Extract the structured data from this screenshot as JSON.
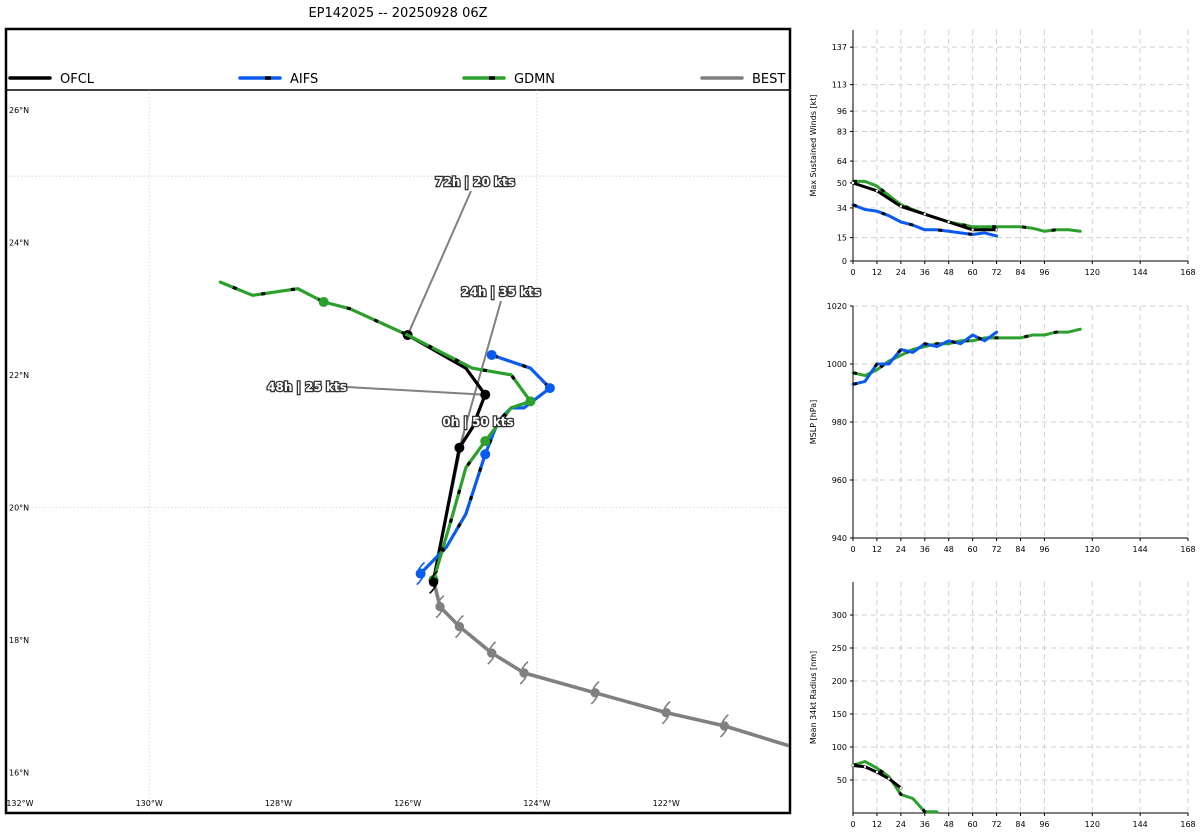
{
  "chart_data": [
    {
      "type": "line",
      "subtype": "track-map",
      "title": "EP142025 -- 20250928 06Z",
      "legend": [
        "OFCL",
        "AIFS",
        "GDMN",
        "BEST"
      ],
      "x_ticks": [
        "132°W",
        "130°W",
        "128°W",
        "126°W",
        "124°W",
        "122°W"
      ],
      "y_ticks": [
        "26°N",
        "24°N",
        "22°N",
        "20°N",
        "18°N",
        "16°N"
      ],
      "xlim": [
        -132.2,
        -120.1
      ],
      "ylim": [
        15.4,
        26.3
      ],
      "series": [
        {
          "name": "BEST",
          "color": "#808080",
          "lon": [
            -120.1,
            -121.1,
            -122.0,
            -123.1,
            -124.2,
            -124.7,
            -125.2,
            -125.5,
            -125.6
          ],
          "lat": [
            16.4,
            16.7,
            16.9,
            17.2,
            17.5,
            17.8,
            18.2,
            18.5,
            18.9
          ],
          "markers": [
            1,
            2,
            3,
            4,
            5,
            6,
            7
          ]
        },
        {
          "name": "OFCL",
          "color": "#000000",
          "lon": [
            -125.6,
            -125.4,
            -125.2,
            -125.0,
            -124.8,
            -125.1,
            -126.0
          ],
          "lat": [
            18.9,
            19.9,
            20.9,
            21.2,
            21.7,
            22.1,
            22.6
          ],
          "markers": [
            0,
            2,
            4,
            6
          ]
        },
        {
          "name": "AIFS",
          "color": "#0a5cf0",
          "lon": [
            -125.8,
            -125.4,
            -125.1,
            -124.8,
            -124.6,
            -124.4,
            -124.2,
            -123.8,
            -124.1,
            -124.7
          ],
          "lat": [
            19.0,
            19.4,
            19.9,
            20.8,
            21.3,
            21.5,
            21.5,
            21.8,
            22.1,
            22.3
          ],
          "markers": [
            0,
            3,
            7,
            9
          ]
        },
        {
          "name": "GDMN",
          "color": "#2ca02c",
          "lon": [
            -125.6,
            -125.3,
            -125.1,
            -124.8,
            -124.4,
            -124.1,
            -124.4,
            -125.0,
            -126.0,
            -126.9,
            -127.3,
            -127.7,
            -128.4,
            -128.9
          ],
          "lat": [
            18.9,
            19.9,
            20.6,
            21.0,
            21.5,
            21.6,
            22.0,
            22.1,
            22.6,
            23.0,
            23.1,
            23.3,
            23.2,
            23.4
          ],
          "markers": [
            0,
            3,
            5,
            10
          ]
        }
      ],
      "annotations": [
        {
          "text": "72h | 20 kts",
          "lon": -126.0,
          "lat": 22.6
        },
        {
          "text": "24h | 35 kts",
          "lon": -125.2,
          "lat": 20.9
        },
        {
          "text": "48h | 25 kts",
          "lon": -124.8,
          "lat": 21.7
        },
        {
          "text": "0h | 50 kts",
          "lon": -125.6,
          "lat": 18.9
        }
      ]
    },
    {
      "type": "line",
      "title": "",
      "ylabel": "Max Sustained Winds [kt]",
      "xlim": [
        0,
        168
      ],
      "ylim": [
        0,
        148
      ],
      "x_ticks": [
        0,
        12,
        24,
        36,
        48,
        60,
        72,
        84,
        96,
        120,
        144,
        168
      ],
      "y_ticks": [
        0,
        15,
        34,
        50,
        64,
        83,
        96,
        113,
        137
      ],
      "series": [
        {
          "name": "OFCL",
          "x": [
            0,
            12,
            24,
            36,
            48,
            60,
            72
          ],
          "y": [
            50,
            45,
            35,
            30,
            25,
            20,
            20
          ]
        },
        {
          "name": "AIFS",
          "x": [
            0,
            6,
            12,
            18,
            24,
            30,
            36,
            42,
            48,
            54,
            60,
            66,
            72
          ],
          "y": [
            36,
            33,
            32,
            29,
            25,
            23,
            20,
            20,
            19,
            18,
            17,
            18,
            16
          ]
        },
        {
          "name": "GDMN",
          "x": [
            0,
            6,
            12,
            18,
            24,
            30,
            36,
            48,
            60,
            72,
            84,
            90,
            96,
            102,
            108,
            114
          ],
          "y": [
            51,
            51,
            48,
            42,
            36,
            33,
            30,
            25,
            22,
            22,
            22,
            21,
            19,
            20,
            20,
            19
          ]
        }
      ]
    },
    {
      "type": "line",
      "title": "",
      "ylabel": "MSLP [hPa]",
      "xlim": [
        0,
        168
      ],
      "ylim": [
        940,
        1020
      ],
      "x_ticks": [
        0,
        12,
        24,
        36,
        48,
        60,
        72,
        84,
        96,
        120,
        144,
        168
      ],
      "y_ticks": [
        940,
        960,
        980,
        1000,
        1020
      ],
      "series": [
        {
          "name": "AIFS",
          "x": [
            0,
            6,
            12,
            18,
            24,
            30,
            36,
            42,
            48,
            54,
            60,
            66,
            72
          ],
          "y": [
            993,
            994,
            1000,
            1000,
            1005,
            1004,
            1007,
            1006,
            1008,
            1007,
            1010,
            1008,
            1011
          ]
        },
        {
          "name": "GDMN",
          "x": [
            0,
            6,
            12,
            18,
            24,
            30,
            36,
            42,
            48,
            54,
            60,
            66,
            72,
            78,
            84,
            90,
            96,
            102,
            108,
            114
          ],
          "y": [
            997,
            996,
            998,
            1001,
            1003,
            1005,
            1006,
            1007,
            1007,
            1008,
            1008,
            1009,
            1009,
            1009,
            1009,
            1010,
            1010,
            1011,
            1011,
            1012
          ]
        }
      ]
    },
    {
      "type": "line",
      "title": "",
      "ylabel": "Mean 34kt Radius [nm]",
      "xlim": [
        0,
        168
      ],
      "ylim": [
        0,
        350
      ],
      "x_ticks": [
        0,
        12,
        24,
        36,
        48,
        60,
        72,
        84,
        96,
        120,
        144,
        168
      ],
      "y_ticks": [
        50,
        100,
        150,
        200,
        250,
        300
      ],
      "series": [
        {
          "name": "OFCL",
          "x": [
            0,
            6,
            12,
            18,
            24
          ],
          "y": [
            72,
            70,
            62,
            52,
            38
          ]
        },
        {
          "name": "GDMN",
          "x": [
            0,
            6,
            12,
            18,
            24,
            30,
            36,
            42
          ],
          "y": [
            72,
            78,
            68,
            55,
            28,
            22,
            2,
            2
          ]
        }
      ]
    }
  ]
}
